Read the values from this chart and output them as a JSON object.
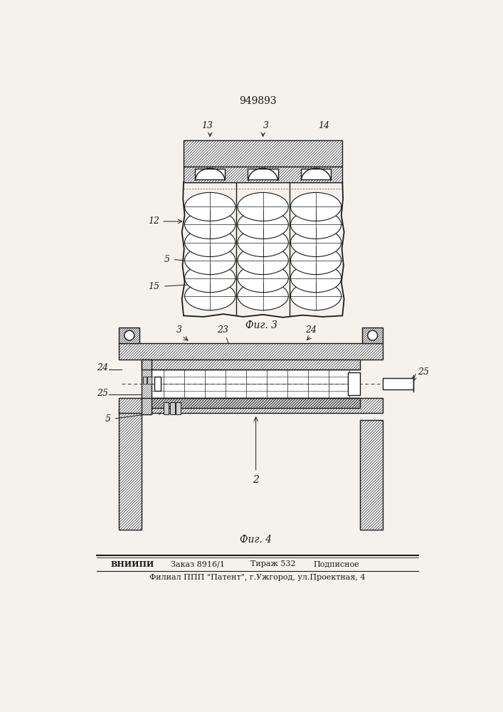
{
  "patent_number": "949893",
  "fig3_caption": "Фиг. 3",
  "fig4_caption": "Фиг. 4",
  "bottom_line2": "Филиал ППП \"Патент\", г.Ужгород, ул.Проектная, 4",
  "bg_color": "#f5f2ed",
  "line_color": "#1a1a1a"
}
